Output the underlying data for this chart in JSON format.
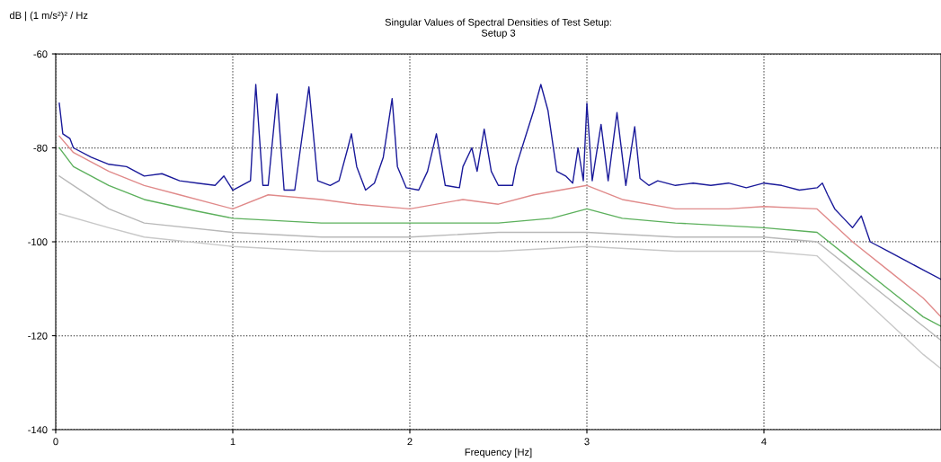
{
  "chart_data": {
    "type": "line",
    "title": "Singular Values of Spectral Densities of Test Setup:\nSetup 3",
    "xlabel": "Frequency [Hz]",
    "ylabel": "dB | (1 m/s²)² / Hz",
    "xlim": [
      0,
      5
    ],
    "ylim": [
      -140,
      -60
    ],
    "xticks": [
      0,
      1,
      2,
      3,
      4
    ],
    "yticks": [
      -140,
      -120,
      -100,
      -80,
      -60
    ],
    "grid": true,
    "line_style": "solid",
    "series": [
      {
        "color": "#c8c8c8",
        "x": [
          0.02,
          0.3,
          0.5,
          1.0,
          1.5,
          2.0,
          2.5,
          3.0,
          3.5,
          4.0,
          4.3,
          4.5,
          4.7,
          4.9,
          5.0
        ],
        "values": [
          -94,
          -97,
          -99,
          -101,
          -102,
          -102,
          -102,
          -101,
          -102,
          -102,
          -103,
          -110,
          -117,
          -124,
          -127
        ]
      },
      {
        "color": "#b8b8b8",
        "x": [
          0.02,
          0.1,
          0.3,
          0.5,
          1.0,
          1.5,
          2.0,
          2.5,
          3.0,
          3.5,
          4.0,
          4.3,
          4.5,
          4.7,
          4.9,
          5.0
        ],
        "values": [
          -86,
          -88,
          -93,
          -96,
          -98,
          -99,
          -99,
          -98,
          -98,
          -99,
          -99,
          -100,
          -106,
          -112,
          -118,
          -121
        ]
      },
      {
        "color": "#5cb05c",
        "x": [
          0.02,
          0.1,
          0.3,
          0.5,
          0.8,
          1.0,
          1.5,
          2.0,
          2.5,
          2.8,
          3.0,
          3.2,
          3.5,
          4.0,
          4.3,
          4.5,
          4.7,
          4.9,
          5.0
        ],
        "values": [
          -80,
          -84,
          -88,
          -91,
          -93.5,
          -95,
          -96,
          -96,
          -96,
          -95,
          -93,
          -95,
          -96,
          -97,
          -98,
          -104,
          -110,
          -116,
          -118
        ]
      },
      {
        "color": "#e08a8a",
        "x": [
          0.02,
          0.1,
          0.3,
          0.5,
          0.7,
          1.0,
          1.2,
          1.5,
          1.7,
          2.0,
          2.3,
          2.5,
          2.7,
          3.0,
          3.2,
          3.5,
          3.8,
          4.0,
          4.3,
          4.5,
          4.7,
          4.9,
          5.0
        ],
        "values": [
          -77.5,
          -81,
          -85,
          -88,
          -90,
          -93,
          -90,
          -91,
          -92,
          -93,
          -91,
          -92,
          -90,
          -88,
          -91,
          -93,
          -93,
          -92.5,
          -93,
          -100,
          -106,
          -112,
          -116
        ]
      },
      {
        "color": "#1a1a9a",
        "x": [
          0.02,
          0.04,
          0.08,
          0.1,
          0.2,
          0.3,
          0.4,
          0.5,
          0.6,
          0.7,
          0.8,
          0.9,
          0.95,
          1.0,
          1.05,
          1.1,
          1.13,
          1.17,
          1.2,
          1.25,
          1.29,
          1.35,
          1.43,
          1.48,
          1.55,
          1.6,
          1.65,
          1.67,
          1.7,
          1.75,
          1.8,
          1.85,
          1.9,
          1.93,
          1.98,
          2.05,
          2.1,
          2.15,
          2.2,
          2.28,
          2.3,
          2.35,
          2.38,
          2.42,
          2.46,
          2.5,
          2.58,
          2.6,
          2.65,
          2.7,
          2.74,
          2.78,
          2.83,
          2.88,
          2.92,
          2.95,
          2.98,
          3.0,
          3.03,
          3.08,
          3.12,
          3.17,
          3.22,
          3.27,
          3.3,
          3.35,
          3.4,
          3.5,
          3.6,
          3.7,
          3.8,
          3.9,
          4.0,
          4.1,
          4.2,
          4.3,
          4.33,
          4.36,
          4.4,
          4.45,
          4.5,
          4.55,
          4.6,
          4.7,
          4.8,
          4.9,
          5.0
        ],
        "values": [
          -70.5,
          -77,
          -78,
          -80,
          -82,
          -83.5,
          -84,
          -86,
          -85.5,
          -87,
          -87.5,
          -88,
          -86,
          -89,
          -88,
          -87,
          -66.5,
          -88,
          -88,
          -68.5,
          -89,
          -89,
          -67,
          -87,
          -88,
          -87,
          -80,
          -77,
          -84,
          -89,
          -87.5,
          -82,
          -69.5,
          -84,
          -88.5,
          -89,
          -85,
          -77,
          -88,
          -88.5,
          -84,
          -80,
          -85,
          -76,
          -85,
          -88,
          -88,
          -84,
          -78,
          -72,
          -66.5,
          -72,
          -85,
          -86,
          -87.5,
          -80,
          -87,
          -70.5,
          -87,
          -75,
          -87,
          -72.5,
          -88,
          -75.5,
          -86.5,
          -88,
          -87,
          -88,
          -87.5,
          -88,
          -87.5,
          -88.5,
          -87.5,
          -88,
          -89,
          -88.5,
          -87.5,
          -90,
          -93,
          -95,
          -97,
          -94.5,
          -100,
          -102,
          -104,
          -106,
          -108
        ]
      }
    ]
  }
}
